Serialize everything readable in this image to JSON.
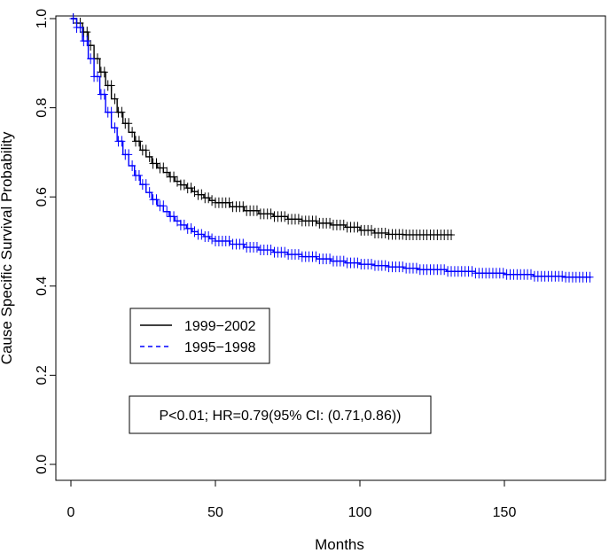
{
  "chart_data": {
    "type": "line",
    "xlabel": "Months",
    "ylabel": "Cause Specific Survival Probability",
    "xlim": [
      0,
      180
    ],
    "ylim": [
      0,
      1
    ],
    "x_ticks": [
      0,
      50,
      100,
      150
    ],
    "y_ticks": [
      0.0,
      0.2,
      0.4,
      0.6,
      0.8,
      1.0
    ],
    "x_tick_labels": [
      "0",
      "50",
      "100",
      "150"
    ],
    "y_tick_labels": [
      "0.0",
      "0.2",
      "0.4",
      "0.6",
      "0.8",
      "1.0"
    ],
    "grid": false,
    "legend_position": "left, middle",
    "annotation": "P<0.01; HR=0.79(95% CI: (0.71,0.86))",
    "series": [
      {
        "name": "1999−2002",
        "color": "#000000",
        "line_style": "solid",
        "censor_marker": "+",
        "x": [
          0,
          2,
          4,
          6,
          8,
          10,
          12,
          14,
          16,
          18,
          20,
          22,
          24,
          26,
          28,
          30,
          32,
          34,
          36,
          38,
          40,
          42,
          44,
          46,
          48,
          50,
          55,
          60,
          65,
          70,
          75,
          80,
          85,
          90,
          95,
          100,
          105,
          110,
          115,
          120,
          125,
          130,
          132
        ],
        "y": [
          1.0,
          0.99,
          0.97,
          0.94,
          0.91,
          0.88,
          0.85,
          0.82,
          0.79,
          0.765,
          0.745,
          0.725,
          0.705,
          0.69,
          0.675,
          0.665,
          0.655,
          0.645,
          0.635,
          0.627,
          0.62,
          0.612,
          0.605,
          0.598,
          0.592,
          0.587,
          0.578,
          0.569,
          0.562,
          0.556,
          0.55,
          0.546,
          0.541,
          0.537,
          0.532,
          0.525,
          0.519,
          0.516,
          0.515,
          0.515,
          0.515,
          0.515,
          0.515
        ]
      },
      {
        "name": "1995−1998",
        "color": "#0000ff",
        "line_style": "dashed",
        "censor_marker": "+",
        "x": [
          0,
          2,
          4,
          6,
          8,
          10,
          12,
          14,
          16,
          18,
          20,
          22,
          24,
          26,
          28,
          30,
          32,
          34,
          36,
          38,
          40,
          42,
          44,
          46,
          48,
          50,
          55,
          60,
          65,
          70,
          75,
          80,
          85,
          90,
          95,
          100,
          105,
          110,
          115,
          120,
          130,
          140,
          150,
          160,
          170,
          180
        ],
        "y": [
          1.0,
          0.98,
          0.95,
          0.91,
          0.87,
          0.83,
          0.79,
          0.755,
          0.725,
          0.695,
          0.67,
          0.648,
          0.628,
          0.61,
          0.594,
          0.58,
          0.567,
          0.556,
          0.546,
          0.537,
          0.529,
          0.522,
          0.516,
          0.511,
          0.506,
          0.501,
          0.494,
          0.487,
          0.481,
          0.476,
          0.471,
          0.466,
          0.461,
          0.456,
          0.452,
          0.449,
          0.446,
          0.443,
          0.44,
          0.437,
          0.433,
          0.429,
          0.426,
          0.422,
          0.42,
          0.42
        ]
      }
    ]
  }
}
